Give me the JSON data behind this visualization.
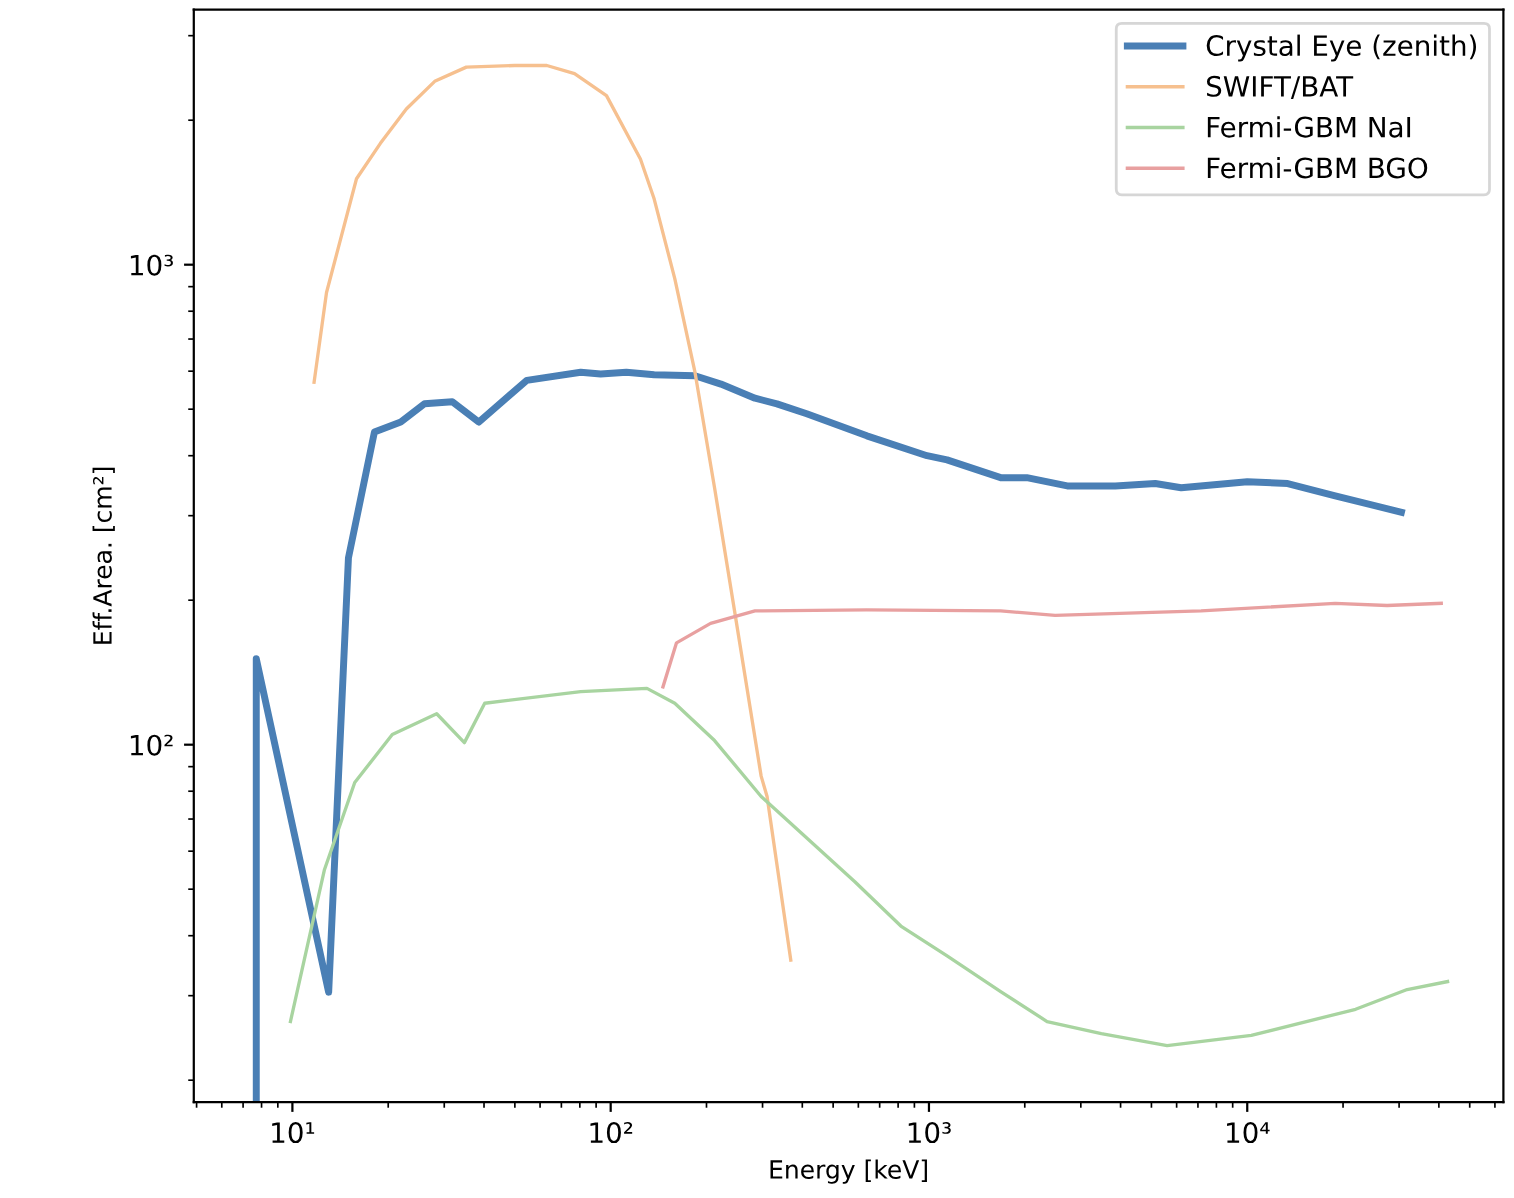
{
  "chart_data": {
    "type": "line",
    "xlabel": "Energy [keV]",
    "ylabel": "Eff.Area. [cm²]",
    "log": "xy",
    "xlim": [
      4.9,
      63800
    ],
    "ylim": [
      18,
      3400
    ],
    "xticks": [
      {
        "value": 10,
        "label": "10¹"
      },
      {
        "value": 100,
        "label": "10²"
      },
      {
        "value": 1000,
        "label": "10³"
      },
      {
        "value": 10000,
        "label": "10⁴"
      }
    ],
    "yticks": [
      {
        "value": 100,
        "label": "10²"
      },
      {
        "value": 1000,
        "label": "10³"
      }
    ],
    "grid": false,
    "legend": "top right",
    "line_style": "solid",
    "marker": "none",
    "series": [
      {
        "name": "Crystal Eye (zenith)",
        "color": "#4a7fb5",
        "x": [
          7.7,
          7.7,
          13.0,
          15.0,
          18.1,
          21.9,
          26.0,
          31.8,
          38.5,
          54.5,
          80.5,
          93,
          112,
          137,
          184,
          222,
          284,
          333,
          413,
          638,
          986,
          1140,
          1680,
          2030,
          2720,
          3850,
          5140,
          6200,
          10000,
          13400,
          18900,
          30500
        ],
        "values": [
          18,
          151,
          30.5,
          245,
          448,
          470,
          513,
          518,
          470,
          574,
          597,
          592,
          597,
          590,
          587,
          564,
          527,
          513,
          489,
          440,
          400,
          392,
          360,
          360,
          346,
          346,
          350,
          343,
          353,
          350,
          330,
          305
        ]
      },
      {
        "name": "SWIFT/BAT",
        "color": "#f6c08f",
        "x": [
          11.7,
          12.8,
          15.9,
          18.9,
          22.8,
          28.0,
          35.2,
          49.9,
          63,
          77,
          97,
          124,
          137,
          159,
          184,
          212,
          245,
          297,
          310,
          368
        ],
        "values": [
          569,
          875,
          1510,
          1790,
          2110,
          2410,
          2580,
          2600,
          2600,
          2500,
          2250,
          1660,
          1370,
          935,
          597,
          343,
          190,
          86,
          78,
          35.6
        ]
      },
      {
        "name": "Fermi-GBM NaI",
        "color": "#a8d4a0",
        "x": [
          9.86,
          12.6,
          15.7,
          20.6,
          28.4,
          34.7,
          40.2,
          80.5,
          130,
          159,
          212,
          297,
          585,
          816,
          1140,
          1680,
          2350,
          3480,
          5600,
          10300,
          21900,
          31800,
          42600
        ],
        "values": [
          26.5,
          54.8,
          83.4,
          105,
          116,
          101,
          122,
          129,
          131,
          122,
          102,
          78,
          51.8,
          41.9,
          36.3,
          30.6,
          26.5,
          25.0,
          23.6,
          24.8,
          28.1,
          30.9,
          32.1
        ]
      },
      {
        "name": "Fermi-GBM BGO",
        "color": "#e8a0a0",
        "x": [
          146,
          161,
          206,
          284,
          638,
          1680,
          2490,
          7160,
          18900,
          27500,
          40700
        ],
        "values": [
          132,
          163,
          179,
          190,
          191,
          190,
          186,
          190,
          197,
          195,
          197
        ]
      }
    ]
  }
}
